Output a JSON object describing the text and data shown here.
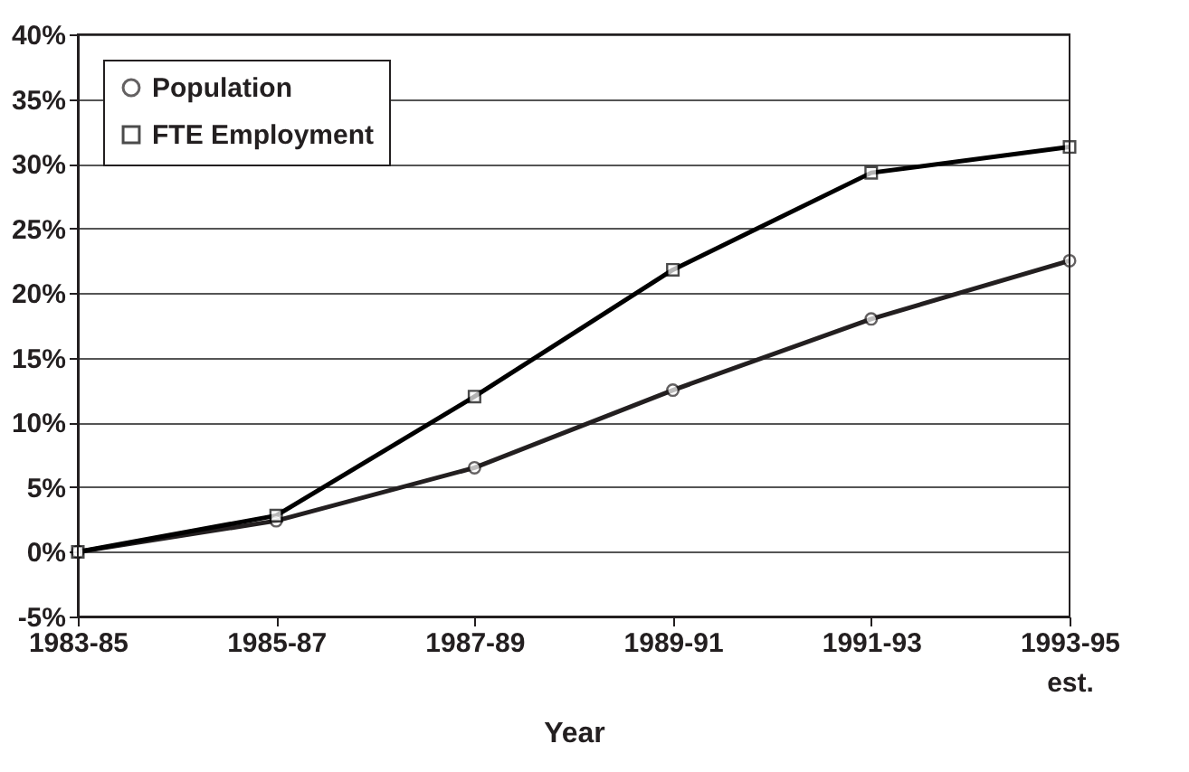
{
  "chart_data": {
    "type": "line",
    "xlabel": "Year",
    "categories": [
      "1983-85",
      "1985-87",
      "1987-89",
      "1989-91",
      "1991-93",
      "1993-95 est."
    ],
    "series": [
      {
        "name": "Population",
        "color": "#231f20",
        "marker": "circle",
        "values": [
          0,
          2.4,
          6.5,
          12.5,
          18,
          22.5
        ]
      },
      {
        "name": "FTE Employment",
        "color": "#000000",
        "marker": "square",
        "values": [
          0,
          2.8,
          12,
          21.8,
          29.3,
          31.3
        ]
      }
    ],
    "ylim": [
      -5,
      40
    ],
    "yticks": [
      {
        "value": -5,
        "label": "-5%"
      },
      {
        "value": 0,
        "label": "0%"
      },
      {
        "value": 5,
        "label": "5%"
      },
      {
        "value": 10,
        "label": "10%"
      },
      {
        "value": 15,
        "label": "15%"
      },
      {
        "value": 20,
        "label": "20%"
      },
      {
        "value": 25,
        "label": "25%"
      },
      {
        "value": 30,
        "label": "30%"
      },
      {
        "value": 35,
        "label": "35%"
      },
      {
        "value": 40,
        "label": "40%"
      }
    ],
    "grid": "y",
    "legend": "top left",
    "line_style": "solid"
  }
}
